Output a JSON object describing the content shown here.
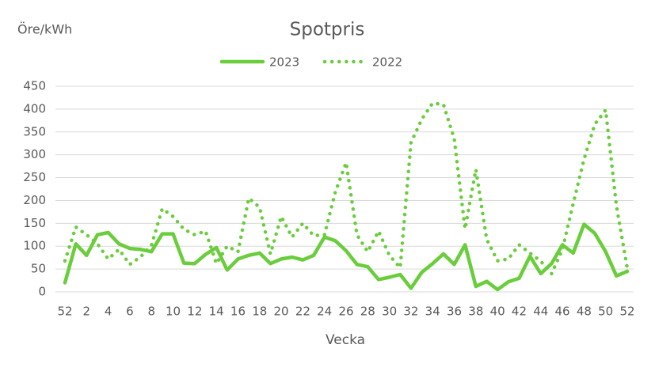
{
  "chart_data": {
    "type": "line",
    "title": "Spotpris",
    "y_label": "Öre/kWh",
    "x_label": "Vecka",
    "categories": [
      52,
      null,
      2,
      null,
      4,
      null,
      6,
      null,
      8,
      null,
      10,
      null,
      12,
      null,
      14,
      null,
      16,
      null,
      18,
      null,
      20,
      null,
      22,
      null,
      24,
      null,
      26,
      null,
      28,
      null,
      30,
      null,
      32,
      null,
      34,
      null,
      36,
      null,
      38,
      null,
      40,
      null,
      42,
      null,
      44,
      null,
      46,
      null,
      48,
      null,
      50,
      null,
      52
    ],
    "series": [
      {
        "name": "2023",
        "color": "#6acd3c",
        "line_style": "solid",
        "values": [
          20,
          105,
          80,
          125,
          130,
          105,
          95,
          93,
          88,
          127,
          127,
          63,
          62,
          82,
          97,
          48,
          72,
          80,
          85,
          62,
          72,
          76,
          70,
          80,
          120,
          112,
          90,
          60,
          55,
          27,
          32,
          38,
          8,
          43,
          62,
          83,
          60,
          103,
          12,
          23,
          5,
          22,
          30,
          78,
          40,
          62,
          103,
          85,
          148,
          128,
          88,
          35,
          45
        ]
      },
      {
        "name": "2022",
        "color": "#6acd3c",
        "line_style": "dotted",
        "values": [
          68,
          142,
          125,
          105,
          72,
          93,
          60,
          77,
          102,
          182,
          165,
          137,
          125,
          133,
          62,
          100,
          88,
          205,
          185,
          83,
          165,
          120,
          150,
          123,
          125,
          218,
          283,
          125,
          88,
          133,
          80,
          53,
          327,
          378,
          413,
          410,
          335,
          138,
          268,
          115,
          68,
          72,
          103,
          85,
          67,
          40,
          93,
          193,
          290,
          367,
          398,
          188,
          52
        ]
      }
    ],
    "ylim": [
      0,
      450
    ],
    "yticks": [
      0,
      50,
      100,
      150,
      200,
      250,
      300,
      350,
      400,
      450
    ],
    "grid": true
  }
}
